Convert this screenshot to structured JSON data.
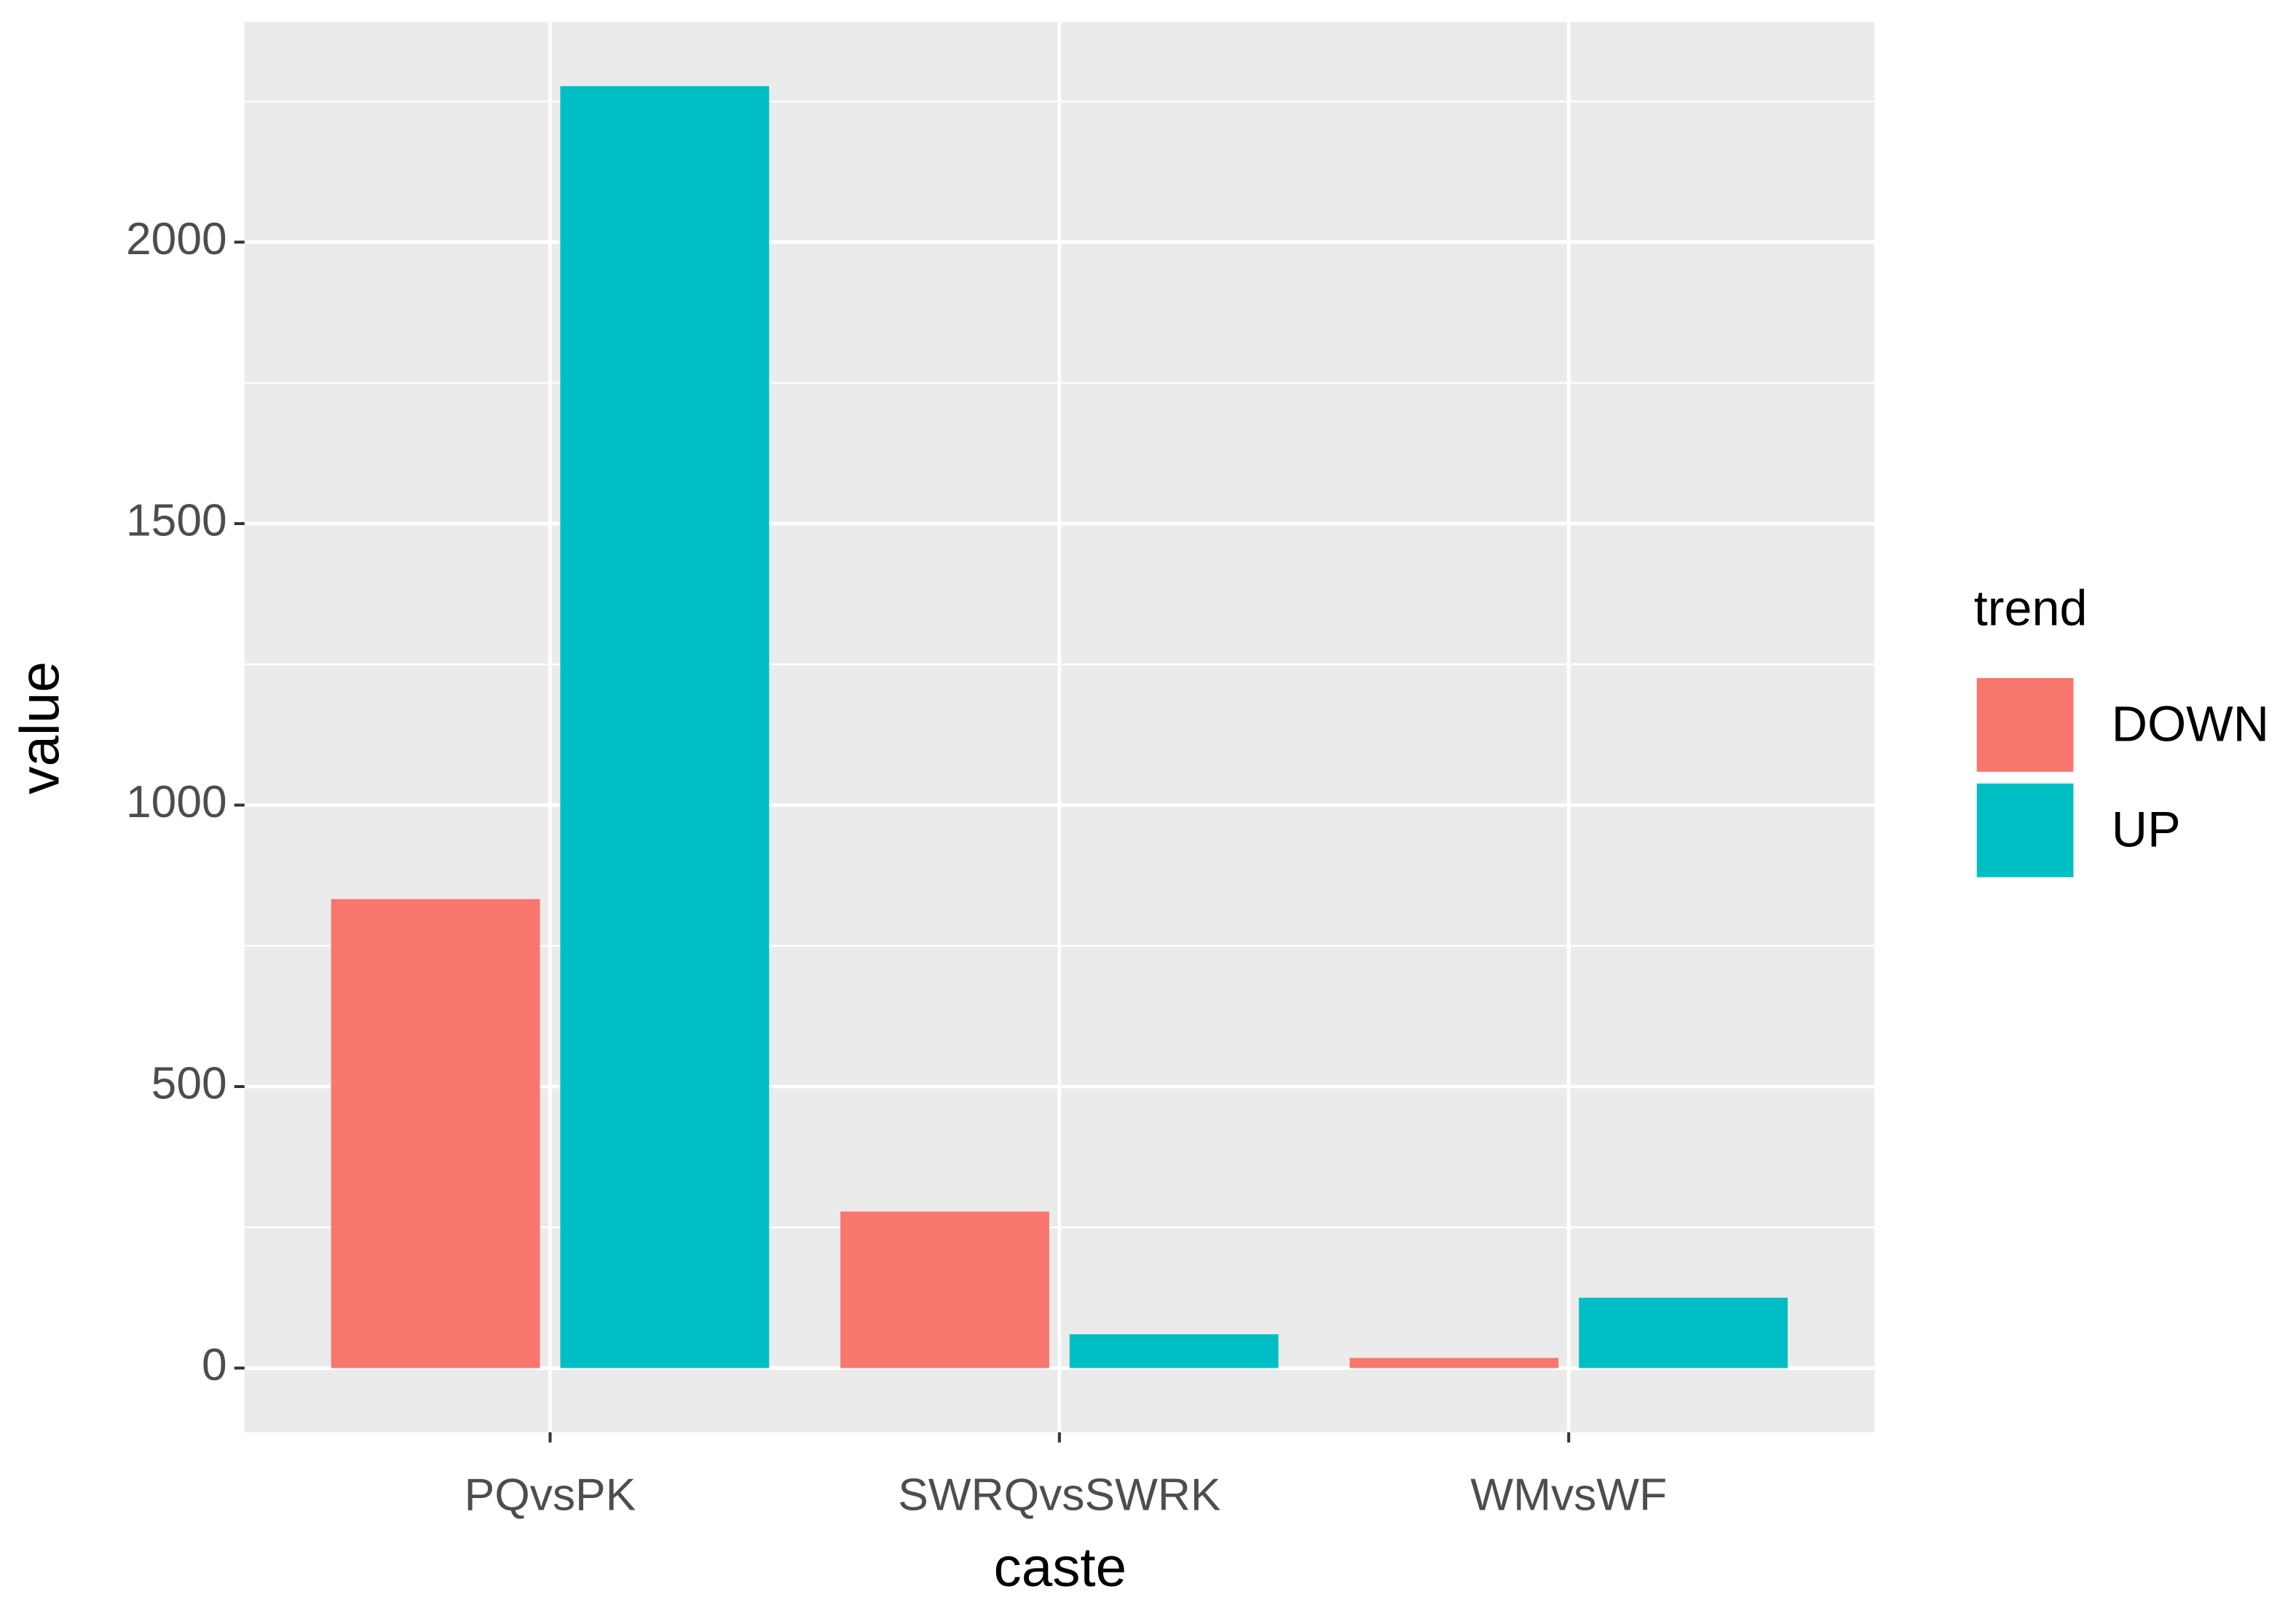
{
  "chart_data": {
    "type": "bar",
    "x_label": "caste",
    "y_label": "value",
    "categories": [
      "PQvsPK",
      "SWRQvsSWRK",
      "WMvsWF"
    ],
    "legend_title": "trend",
    "series": [
      {
        "name": "DOWN",
        "color": "#f8766d",
        "values": [
          833,
          278,
          18
        ]
      },
      {
        "name": "UP",
        "color": "#00bfc4",
        "values": [
          2277,
          60,
          125
        ]
      }
    ],
    "ylim": [
      -114,
      2391
    ],
    "yticks": [
      0,
      500,
      1000,
      1500,
      2000
    ],
    "grid": true,
    "legend_position": "right"
  }
}
